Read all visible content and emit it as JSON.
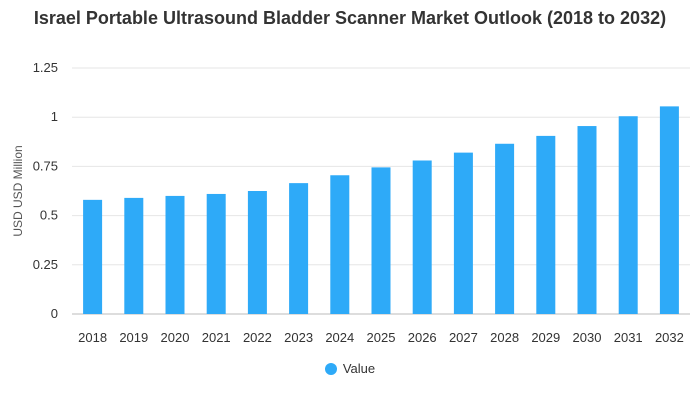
{
  "chart_data": {
    "type": "bar",
    "title": "Israel Portable Ultrasound Bladder Scanner Market Outlook (2018 to 2032)",
    "xlabel": "",
    "ylabel": "USD USD Million",
    "ylim": [
      0,
      1.25
    ],
    "yticks": [
      "0",
      "0.25",
      "0.5",
      "0.75",
      "1",
      "1.25"
    ],
    "grid": true,
    "legend_position": "bottom",
    "categories": [
      "2018",
      "2019",
      "2020",
      "2021",
      "2022",
      "2023",
      "2024",
      "2025",
      "2026",
      "2027",
      "2028",
      "2029",
      "2030",
      "2031",
      "2032"
    ],
    "series": [
      {
        "name": "Value",
        "color": "#2eaaf8",
        "values": [
          0.58,
          0.59,
          0.6,
          0.61,
          0.625,
          0.665,
          0.705,
          0.745,
          0.78,
          0.82,
          0.865,
          0.905,
          0.955,
          1.005,
          1.055
        ]
      }
    ]
  }
}
